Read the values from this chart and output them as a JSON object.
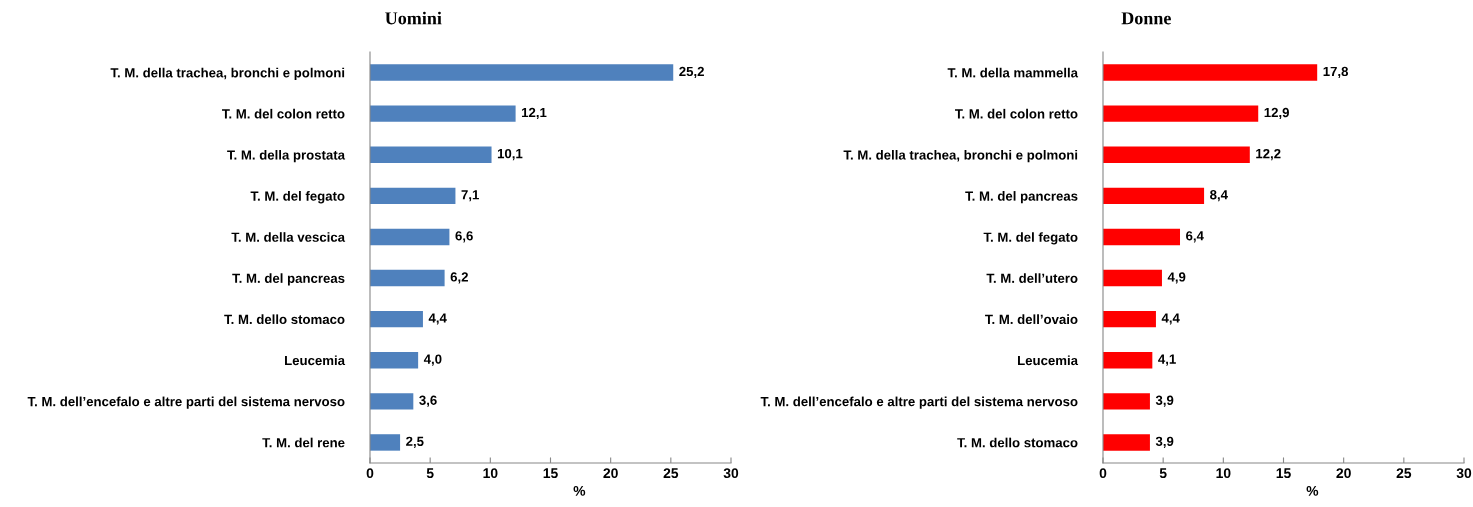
{
  "chart_data": [
    {
      "type": "bar",
      "orientation": "horizontal",
      "title": "Uomini",
      "xlabel": "%",
      "categories": [
        "T. M. della trachea, bronchi e polmoni",
        "T. M. del colon retto",
        "T. M. della prostata",
        "T. M. del fegato",
        "T. M. della vescica",
        "T. M. del pancreas",
        "T. M. dello stomaco",
        "Leucemia",
        "T. M. dell’encefalo e altre parti del sistema nervoso",
        "T. M. del rene"
      ],
      "values": [
        25.2,
        12.1,
        10.1,
        7.1,
        6.6,
        6.2,
        4.4,
        4.0,
        3.6,
        2.5
      ],
      "value_labels": [
        "25,2",
        "12,1",
        "10,1",
        "7,1",
        "6,6",
        "6,2",
        "4,4",
        "4,0",
        "3,6",
        "2,5"
      ],
      "color": "#4f81bd",
      "xlim": [
        0,
        30
      ],
      "xticks": [
        0,
        5,
        10,
        15,
        20,
        25,
        30
      ],
      "grid": false,
      "legend": false
    },
    {
      "type": "bar",
      "orientation": "horizontal",
      "title": "Donne",
      "xlabel": "%",
      "categories": [
        "T. M. della mammella",
        "T. M. del colon retto",
        "T. M. della trachea, bronchi e polmoni",
        "T. M. del pancreas",
        "T. M. del fegato",
        "T. M. dell’utero",
        "T. M. dell’ovaio",
        "Leucemia",
        "T. M. dell’encefalo e altre parti del sistema nervoso",
        "T. M. dello stomaco"
      ],
      "values": [
        17.8,
        12.9,
        12.2,
        8.4,
        6.4,
        4.9,
        4.4,
        4.1,
        3.9,
        3.9
      ],
      "value_labels": [
        "17,8",
        "12,9",
        "12,2",
        "8,4",
        "6,4",
        "4,9",
        "4,4",
        "4,1",
        "3,9",
        "3,9"
      ],
      "color": "#ff0000",
      "xlim": [
        0,
        30
      ],
      "xticks": [
        0,
        5,
        10,
        15,
        20,
        25,
        30
      ],
      "grid": false,
      "legend": false
    }
  ]
}
